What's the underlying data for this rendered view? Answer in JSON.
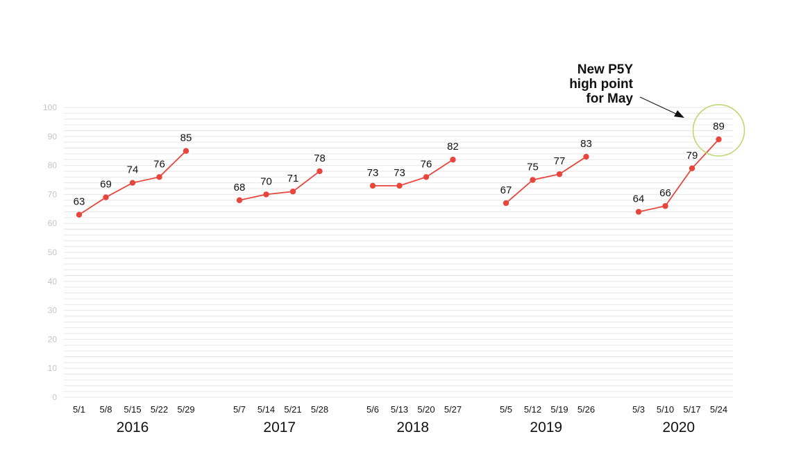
{
  "chart_data": {
    "type": "line",
    "title": "",
    "xlabel": "",
    "ylabel": "",
    "ylim": [
      0,
      100
    ],
    "yticks": [
      0,
      10,
      20,
      30,
      40,
      50,
      60,
      70,
      80,
      90,
      100
    ],
    "grid": true,
    "colors": {
      "line": "#e8453c",
      "grid": "#e6e6e6",
      "highlight_circle": "#b9d66a"
    },
    "groups": [
      {
        "name": "2016",
        "x": [
          "5/1",
          "5/8",
          "5/15",
          "5/22",
          "5/29"
        ],
        "values": [
          63,
          69,
          74,
          76,
          85
        ]
      },
      {
        "name": "2017",
        "x": [
          "5/7",
          "5/14",
          "5/21",
          "5/28"
        ],
        "values": [
          68,
          70,
          71,
          78
        ]
      },
      {
        "name": "2018",
        "x": [
          "5/6",
          "5/13",
          "5/20",
          "5/27"
        ],
        "values": [
          73,
          73,
          76,
          82
        ]
      },
      {
        "name": "2019",
        "x": [
          "5/5",
          "5/12",
          "5/19",
          "5/26"
        ],
        "values": [
          67,
          75,
          77,
          83
        ]
      },
      {
        "name": "2020",
        "x": [
          "5/3",
          "5/10",
          "5/17",
          "5/24"
        ],
        "values": [
          64,
          66,
          79,
          89
        ]
      }
    ],
    "annotation": {
      "lines": [
        "New P5Y",
        "high point",
        "for May"
      ],
      "target_group": "2020",
      "target_x": "5/24",
      "target_value": 89
    }
  }
}
